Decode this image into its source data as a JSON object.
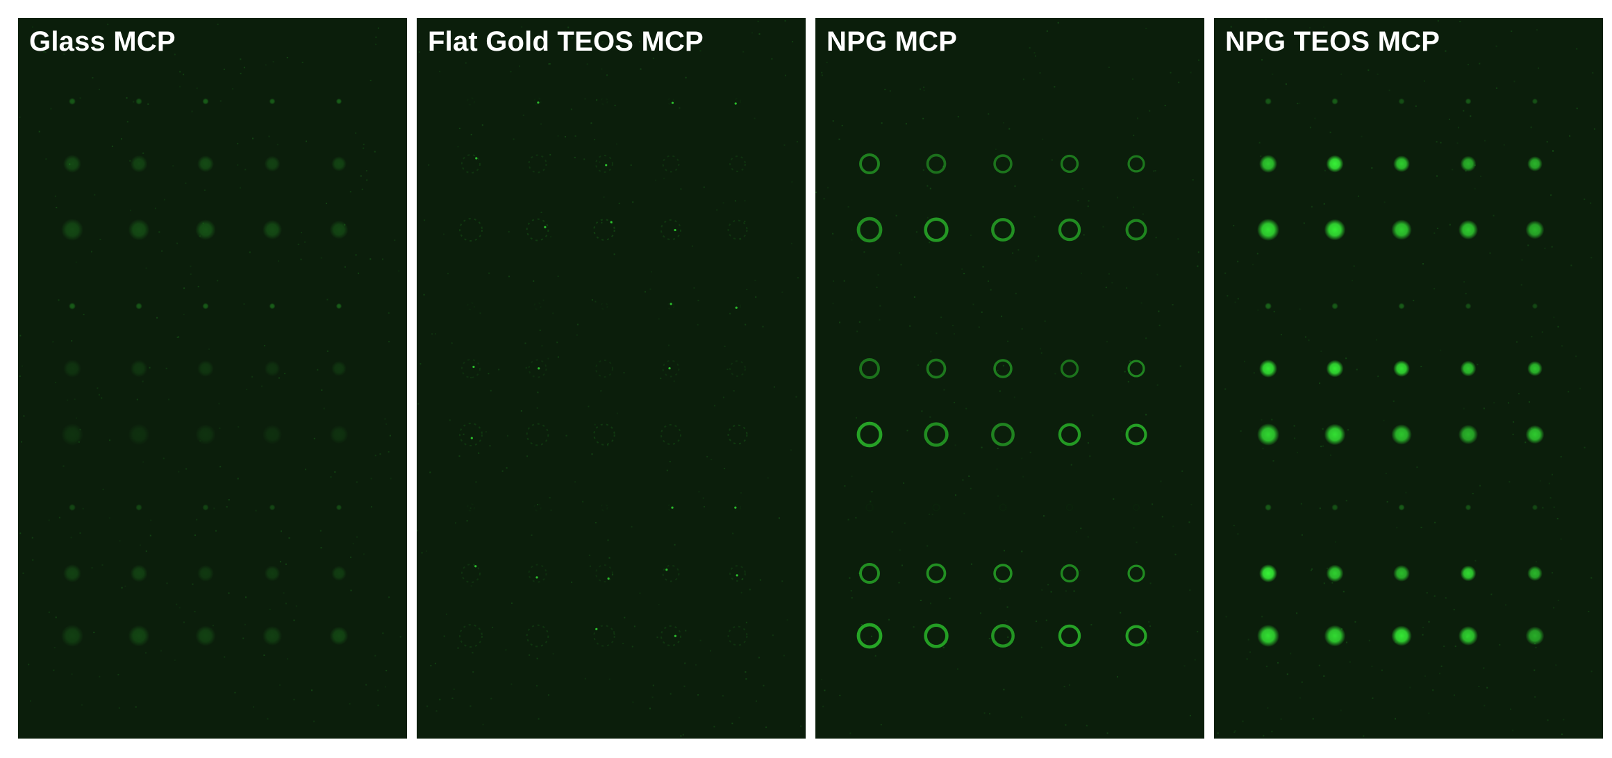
{
  "colors": {
    "background": "#ffffff",
    "panel_background": "#0b1e0b",
    "label_text": "#ffffff",
    "fluorescence": "#39ff39"
  },
  "panels": [
    {
      "label": "Glass MCP",
      "spot_style": "faint-blob",
      "row_brightness": [
        0.28,
        0.18,
        0.2,
        0.28,
        0.1,
        0.08,
        0.2,
        0.14,
        0.16
      ]
    },
    {
      "label": "Flat Gold TEOS MCP",
      "spot_style": "speckle",
      "row_brightness": [
        0.03,
        0.1,
        0.12,
        0.03,
        0.08,
        0.12,
        0.03,
        0.08,
        0.1
      ]
    },
    {
      "label": "NPG MCP",
      "spot_style": "ring",
      "row_brightness": [
        0.0,
        0.42,
        0.5,
        0.0,
        0.42,
        0.52,
        0.02,
        0.5,
        0.56
      ]
    },
    {
      "label": "NPG TEOS MCP",
      "spot_style": "filled",
      "row_brightness": [
        0.3,
        0.9,
        0.92,
        0.3,
        0.86,
        0.9,
        0.3,
        0.9,
        0.95
      ]
    }
  ]
}
